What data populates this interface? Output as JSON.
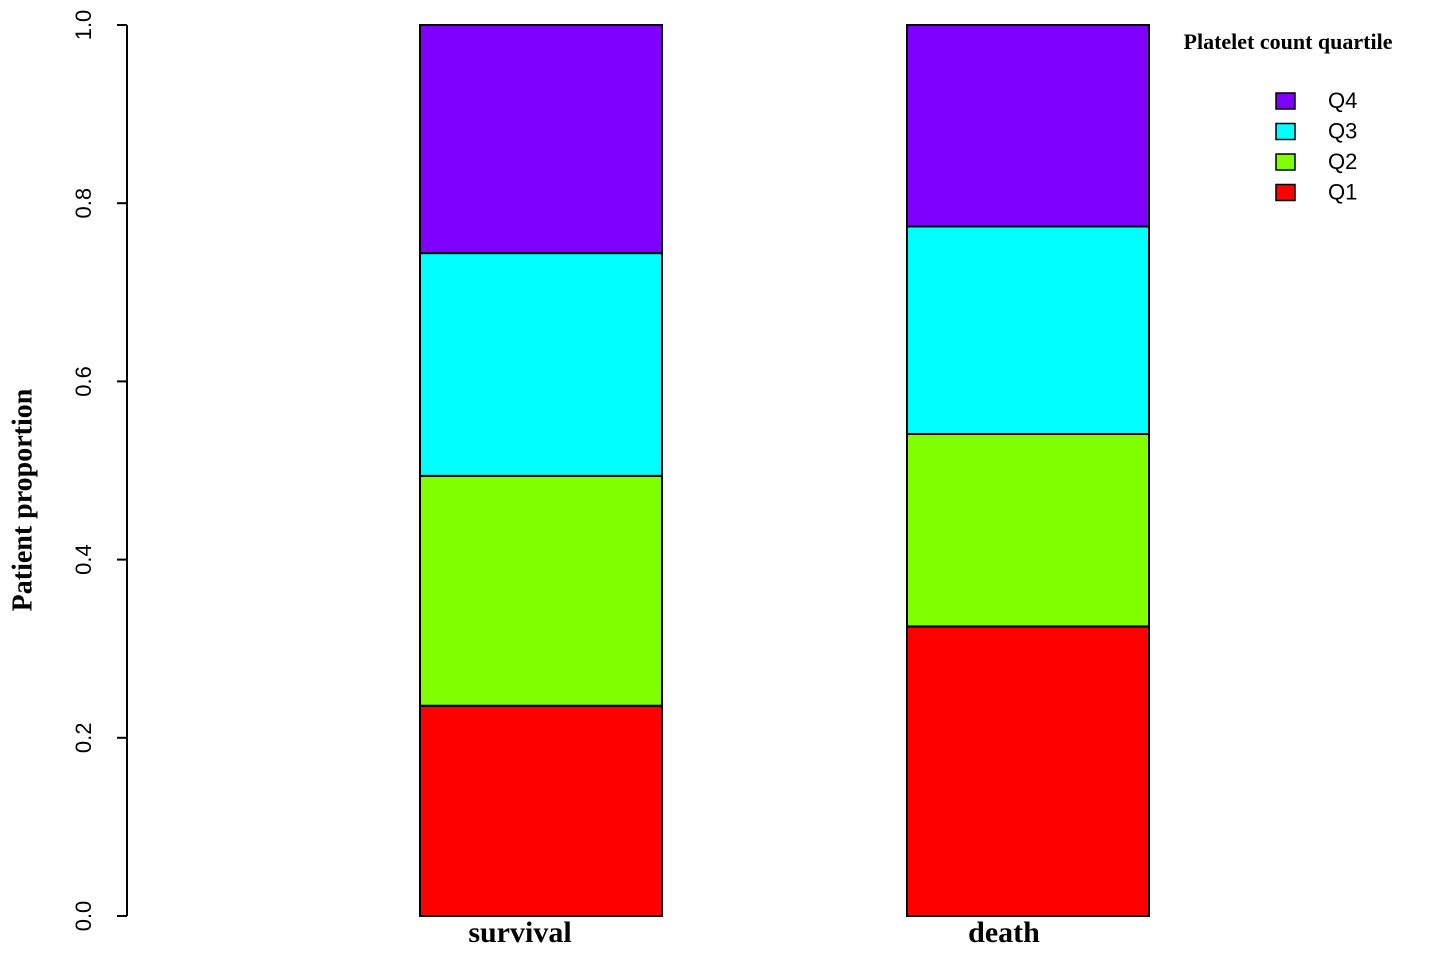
{
  "chart_data": {
    "type": "stacked_bar",
    "y_label": "Patient proportion",
    "legend_title": "Platelet count quartile",
    "legend_position": "top-right",
    "categories": [
      "survival",
      "death"
    ],
    "series": [
      {
        "name": "Q1",
        "color": "#ff0000",
        "values": [
          0.236,
          0.325
        ]
      },
      {
        "name": "Q2",
        "color": "#80ff00",
        "values": [
          0.258,
          0.216
        ]
      },
      {
        "name": "Q3",
        "color": "#00ffff",
        "values": [
          0.25,
          0.233
        ]
      },
      {
        "name": "Q4",
        "color": "#8000ff",
        "values": [
          0.256,
          0.226
        ]
      }
    ],
    "ylim": [
      0,
      1
    ],
    "yticks": [
      {
        "value": 0,
        "label": "0.0"
      },
      0.2,
      0.4,
      0.6,
      0.8,
      {
        "value": 1,
        "label": "1.0"
      }
    ]
  }
}
